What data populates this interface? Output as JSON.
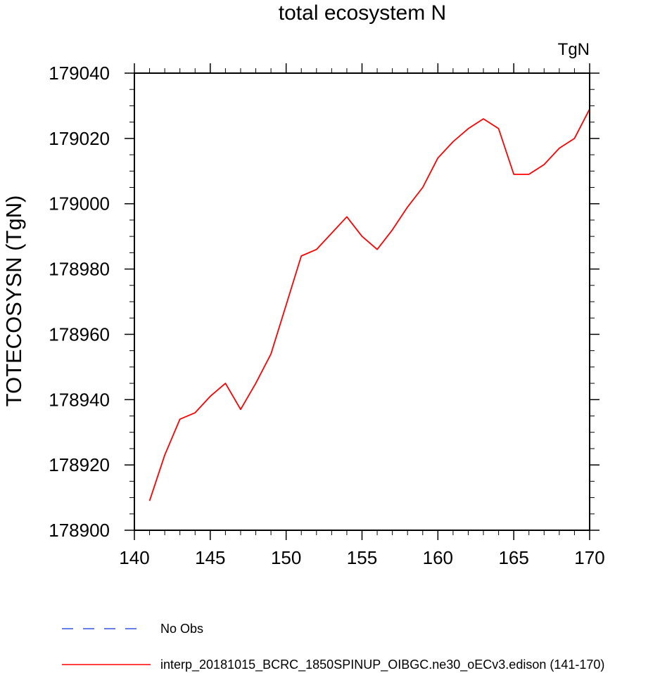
{
  "chart_data": {
    "type": "line",
    "title": "total ecosystem N",
    "units_label": "TgN",
    "ylabel": "TOTECOSYSN  (TgN)",
    "xlabel": "",
    "xlim": [
      140,
      170
    ],
    "ylim": [
      178900,
      179040
    ],
    "xticks": [
      140,
      145,
      150,
      155,
      160,
      165,
      170
    ],
    "yticks": [
      178900,
      178920,
      178940,
      178960,
      178980,
      179000,
      179020,
      179040
    ],
    "x_minor_step": 1,
    "y_minor_step": 5,
    "grid": false,
    "series": [
      {
        "name": "interp_20181015_BCRC_1850SPINUP_OIBGC.ne30_oECv3.edison (141-170)",
        "color": "#ff0000",
        "dash": "solid",
        "x": [
          141,
          142,
          143,
          144,
          145,
          146,
          147,
          148,
          149,
          150,
          151,
          152,
          153,
          154,
          155,
          156,
          157,
          158,
          159,
          160,
          161,
          162,
          163,
          164,
          165,
          166,
          167,
          168,
          169,
          170
        ],
        "y": [
          178909,
          178923,
          178934,
          178936,
          178941,
          178945,
          178937,
          178945,
          178954,
          178969,
          178984,
          178986,
          178991,
          178996,
          178990,
          178986,
          178992,
          178999,
          179005,
          179014,
          179019,
          179023,
          179026,
          179023,
          179009,
          179009,
          179012,
          179017,
          179020,
          179029
        ]
      }
    ],
    "legend": {
      "placement": "bottom",
      "entries": [
        {
          "label": "No Obs",
          "color": "#3355dd",
          "dash": "dashed"
        },
        {
          "label": "interp_20181015_BCRC_1850SPINUP_OIBGC.ne30_oECv3.edison (141-170)",
          "color": "#ff0000",
          "dash": "solid"
        }
      ]
    }
  }
}
